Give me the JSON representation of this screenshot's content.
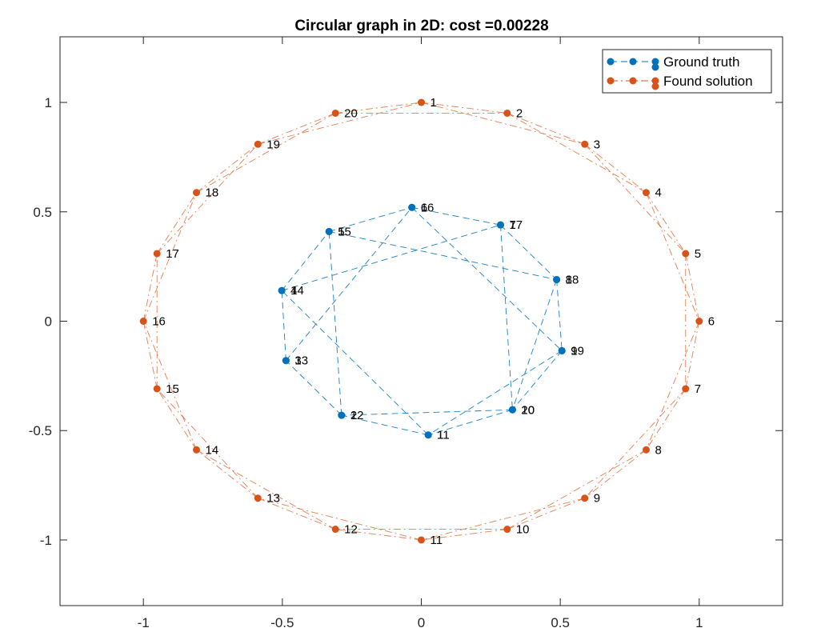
{
  "chart_data": {
    "type": "scatter",
    "title": "Circular graph in 2D: cost =0.00228",
    "xlabel": "",
    "ylabel": "",
    "xlim": [
      -1.3,
      1.3
    ],
    "ylim": [
      -1.3,
      1.3
    ],
    "x_ticks": [
      -1,
      -0.5,
      0,
      0.5,
      1
    ],
    "x_tick_labels": [
      "-1",
      "-0.5",
      "0",
      "0.5",
      "1"
    ],
    "y_ticks": [
      -1,
      -0.5,
      0,
      0.5,
      1
    ],
    "y_tick_labels": [
      "-1",
      "-0.5",
      "0",
      "0.5",
      "1"
    ],
    "grid": false,
    "legend_position": "top-right",
    "series": [
      {
        "name": "Ground truth",
        "color": "#0072BD",
        "line_style": "dashed",
        "labels": [
          "1",
          "2",
          "3",
          "4",
          "5",
          "6",
          "7",
          "8",
          "9",
          "10",
          "11",
          "12",
          "13",
          "14",
          "15",
          "16",
          "17",
          "18",
          "19",
          "20"
        ],
        "x": [
          0.025,
          -0.287,
          -0.487,
          -0.502,
          -0.332,
          -0.034,
          0.285,
          0.487,
          0.506,
          0.328,
          0.025,
          -0.287,
          -0.487,
          -0.502,
          -0.332,
          -0.034,
          0.285,
          0.487,
          0.506,
          0.328
        ],
        "y": [
          -0.52,
          -0.43,
          -0.18,
          0.14,
          0.41,
          0.52,
          0.44,
          0.19,
          -0.135,
          -0.405,
          -0.52,
          -0.43,
          -0.18,
          0.14,
          0.41,
          0.52,
          0.44,
          0.19,
          -0.135,
          -0.405
        ],
        "edges": [
          [
            11,
            12
          ],
          [
            12,
            13
          ],
          [
            13,
            14
          ],
          [
            14,
            15
          ],
          [
            15,
            16
          ],
          [
            16,
            17
          ],
          [
            17,
            18
          ],
          [
            18,
            19
          ],
          [
            19,
            20
          ],
          [
            20,
            12
          ],
          [
            11,
            14
          ],
          [
            14,
            17
          ],
          [
            17,
            20
          ],
          [
            20,
            11
          ],
          [
            12,
            15
          ],
          [
            15,
            18
          ],
          [
            18,
            20
          ],
          [
            13,
            16
          ],
          [
            16,
            19
          ],
          [
            19,
            11
          ]
        ]
      },
      {
        "name": "Found solution",
        "color": "#D95319",
        "line_style": "dash-dot",
        "labels": [
          "1",
          "2",
          "3",
          "4",
          "5",
          "6",
          "7",
          "8",
          "9",
          "10",
          "11",
          "12",
          "13",
          "14",
          "15",
          "16",
          "17",
          "18",
          "19",
          "20"
        ],
        "x": [
          0,
          0.309,
          0.588,
          0.809,
          0.951,
          1,
          0.951,
          0.809,
          0.588,
          0.309,
          0,
          -0.309,
          -0.588,
          -0.809,
          -0.951,
          -1,
          -0.951,
          -0.809,
          -0.588,
          -0.309
        ],
        "y": [
          1,
          0.951,
          0.809,
          0.588,
          0.309,
          0,
          -0.309,
          -0.588,
          -0.809,
          -0.951,
          -1,
          -0.951,
          -0.809,
          -0.588,
          -0.309,
          0,
          0.309,
          0.588,
          0.809,
          0.951
        ],
        "edges": [
          [
            1,
            2
          ],
          [
            2,
            3
          ],
          [
            3,
            4
          ],
          [
            4,
            5
          ],
          [
            5,
            6
          ],
          [
            6,
            7
          ],
          [
            7,
            8
          ],
          [
            8,
            9
          ],
          [
            9,
            10
          ],
          [
            10,
            11
          ],
          [
            11,
            12
          ],
          [
            12,
            13
          ],
          [
            13,
            14
          ],
          [
            14,
            15
          ],
          [
            15,
            16
          ],
          [
            16,
            17
          ],
          [
            17,
            18
          ],
          [
            18,
            19
          ],
          [
            19,
            20
          ],
          [
            20,
            1
          ],
          [
            1,
            3
          ],
          [
            2,
            4
          ],
          [
            3,
            5
          ],
          [
            4,
            6
          ],
          [
            5,
            7
          ],
          [
            6,
            8
          ],
          [
            7,
            9
          ],
          [
            8,
            10
          ],
          [
            9,
            11
          ],
          [
            10,
            12
          ],
          [
            11,
            13
          ],
          [
            12,
            14
          ],
          [
            13,
            15
          ],
          [
            14,
            16
          ],
          [
            15,
            17
          ],
          [
            16,
            18
          ],
          [
            17,
            19
          ],
          [
            18,
            20
          ],
          [
            19,
            1
          ],
          [
            20,
            2
          ]
        ]
      }
    ]
  }
}
